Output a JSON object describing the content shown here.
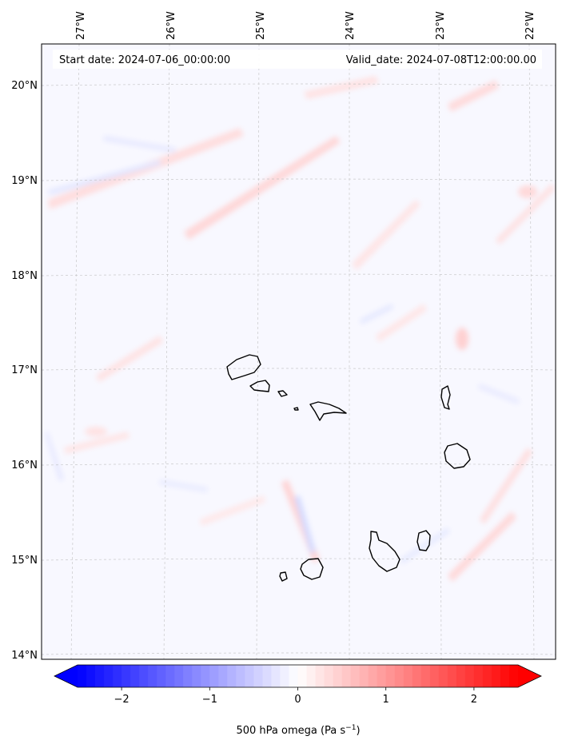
{
  "map": {
    "start_date_label": "Start date: 2024-07-06_00:00:00",
    "valid_date_label": "Valid_date: 2024-07-08T12:00:00.00",
    "lon_labels": [
      "27°W",
      "26°W",
      "25°W",
      "24°W",
      "23°W",
      "22°W"
    ],
    "lat_labels": [
      "20°N",
      "19°N",
      "18°N",
      "17°N",
      "16°N",
      "15°N",
      "14°N"
    ],
    "lon_range": [
      -27.4,
      -21.8
    ],
    "lat_range": [
      13.95,
      20.4
    ],
    "gridlines": true,
    "coastline_color": "#000000",
    "field_name": "500 hPa omega",
    "background_tint": "#f8f8ff"
  },
  "colorbar": {
    "label_main": "500 hPa omega (Pa s",
    "label_sup": "−1",
    "label_close": ")",
    "ticks": [
      "−2",
      "−1",
      "0",
      "1",
      "2"
    ],
    "tick_values": [
      -2,
      -1,
      0,
      1,
      2
    ],
    "range": [
      -2.5,
      2.5
    ],
    "extend": "both",
    "cmap": "bwr",
    "low_color": "#0000ff",
    "mid_color": "#ffffff",
    "high_color": "#ff0000"
  }
}
